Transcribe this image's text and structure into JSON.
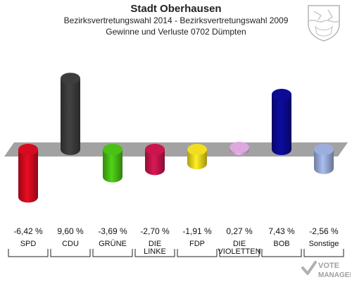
{
  "header": {
    "title": "Stadt Oberhausen",
    "subtitle1": "Bezirksvertretungswahl 2014 - Bezirksvertretungswahl 2009",
    "subtitle2": "Gewinne und Verluste 0702 Dümpten"
  },
  "watermark": {
    "text1": "VOTE",
    "text2": "MANAGER"
  },
  "chart_data": {
    "type": "bar",
    "categories": [
      "SPD",
      "CDU",
      "GRÜNE",
      "DIE LINKE",
      "FDP",
      "DIE VIOLETTEN",
      "BOB",
      "Sonstige"
    ],
    "category_lines": [
      [
        "SPD"
      ],
      [
        "CDU"
      ],
      [
        "GRÜNE"
      ],
      [
        "DIE",
        "LINKE"
      ],
      [
        "FDP"
      ],
      [
        "DIE",
        "VIOLETTEN"
      ],
      [
        "BOB"
      ],
      [
        "Sonstige"
      ]
    ],
    "values": [
      -6.42,
      9.6,
      -3.69,
      -2.7,
      -1.91,
      0.27,
      7.43,
      -2.56
    ],
    "value_labels": [
      "-6,42 %",
      "9,60 %",
      "-3,69 %",
      "-2,70 %",
      "-1,91 %",
      "0,27 %",
      "7,43 %",
      "-2,56 %"
    ],
    "colors": [
      "#cc0a1e",
      "#3a3a3a",
      "#46b814",
      "#c0144a",
      "#e6d21e",
      "#d2a0d2",
      "#0a0a8c",
      "#94a6d2"
    ],
    "ylim": [
      -10,
      10
    ],
    "baseline": 0
  }
}
